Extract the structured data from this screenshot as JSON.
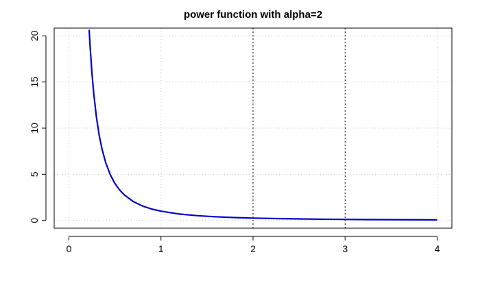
{
  "chart_data": {
    "type": "line",
    "title": "power function with alpha=2",
    "xlabel": "",
    "ylabel": "",
    "xlim": [
      -0.16,
      4.16
    ],
    "ylim": [
      -0.84,
      20.84
    ],
    "x_ticks": [
      0,
      1,
      2,
      3,
      4
    ],
    "x_tick_labels": [
      "0",
      "1",
      "2",
      "3",
      "4"
    ],
    "y_ticks": [
      0,
      5,
      10,
      15,
      20
    ],
    "y_tick_labels": [
      "0",
      "5",
      "10",
      "15",
      "20"
    ],
    "grid": true,
    "legend": "none",
    "vlines": [
      2,
      3
    ],
    "series": [
      {
        "function": "y = x^(-2)",
        "color": "#0000cc",
        "x": [
          0.22,
          0.23,
          0.25,
          0.27,
          0.3,
          0.33,
          0.36,
          0.4,
          0.45,
          0.5,
          0.55,
          0.6,
          0.7,
          0.8,
          0.9,
          1.0,
          1.2,
          1.4,
          1.6,
          1.8,
          2.0,
          2.25,
          2.5,
          2.75,
          3.0,
          3.25,
          3.5,
          3.75,
          4.0
        ],
        "y": [
          20.66,
          18.9,
          16.0,
          13.72,
          11.11,
          9.18,
          7.72,
          6.25,
          4.94,
          4.0,
          3.31,
          2.78,
          2.04,
          1.56,
          1.23,
          1.0,
          0.69,
          0.51,
          0.39,
          0.31,
          0.25,
          0.2,
          0.16,
          0.13,
          0.11,
          0.09,
          0.08,
          0.07,
          0.06
        ]
      }
    ]
  },
  "colors": {
    "curve": "#0000cc",
    "grid": "#c8c8c8",
    "frame": "#000000"
  }
}
